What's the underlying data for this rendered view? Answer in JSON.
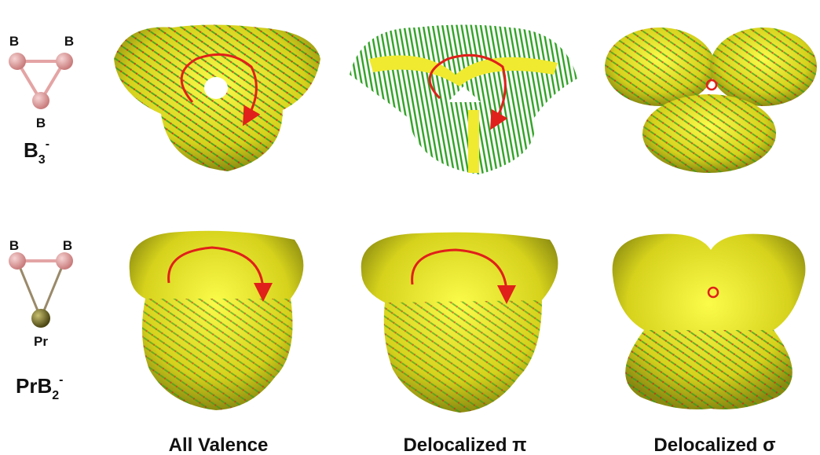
{
  "rows": [
    {
      "atoms": [
        "B",
        "B",
        "B"
      ],
      "formula": {
        "base": "B",
        "sub": "3",
        "sup": "-"
      }
    },
    {
      "atoms": [
        "B",
        "B",
        "Pr"
      ],
      "formula": {
        "base": "PrB",
        "sub": "2",
        "sup": "-"
      }
    }
  ],
  "columns": [
    "All Valence",
    "Delocalized π",
    "Delocalized σ"
  ]
}
